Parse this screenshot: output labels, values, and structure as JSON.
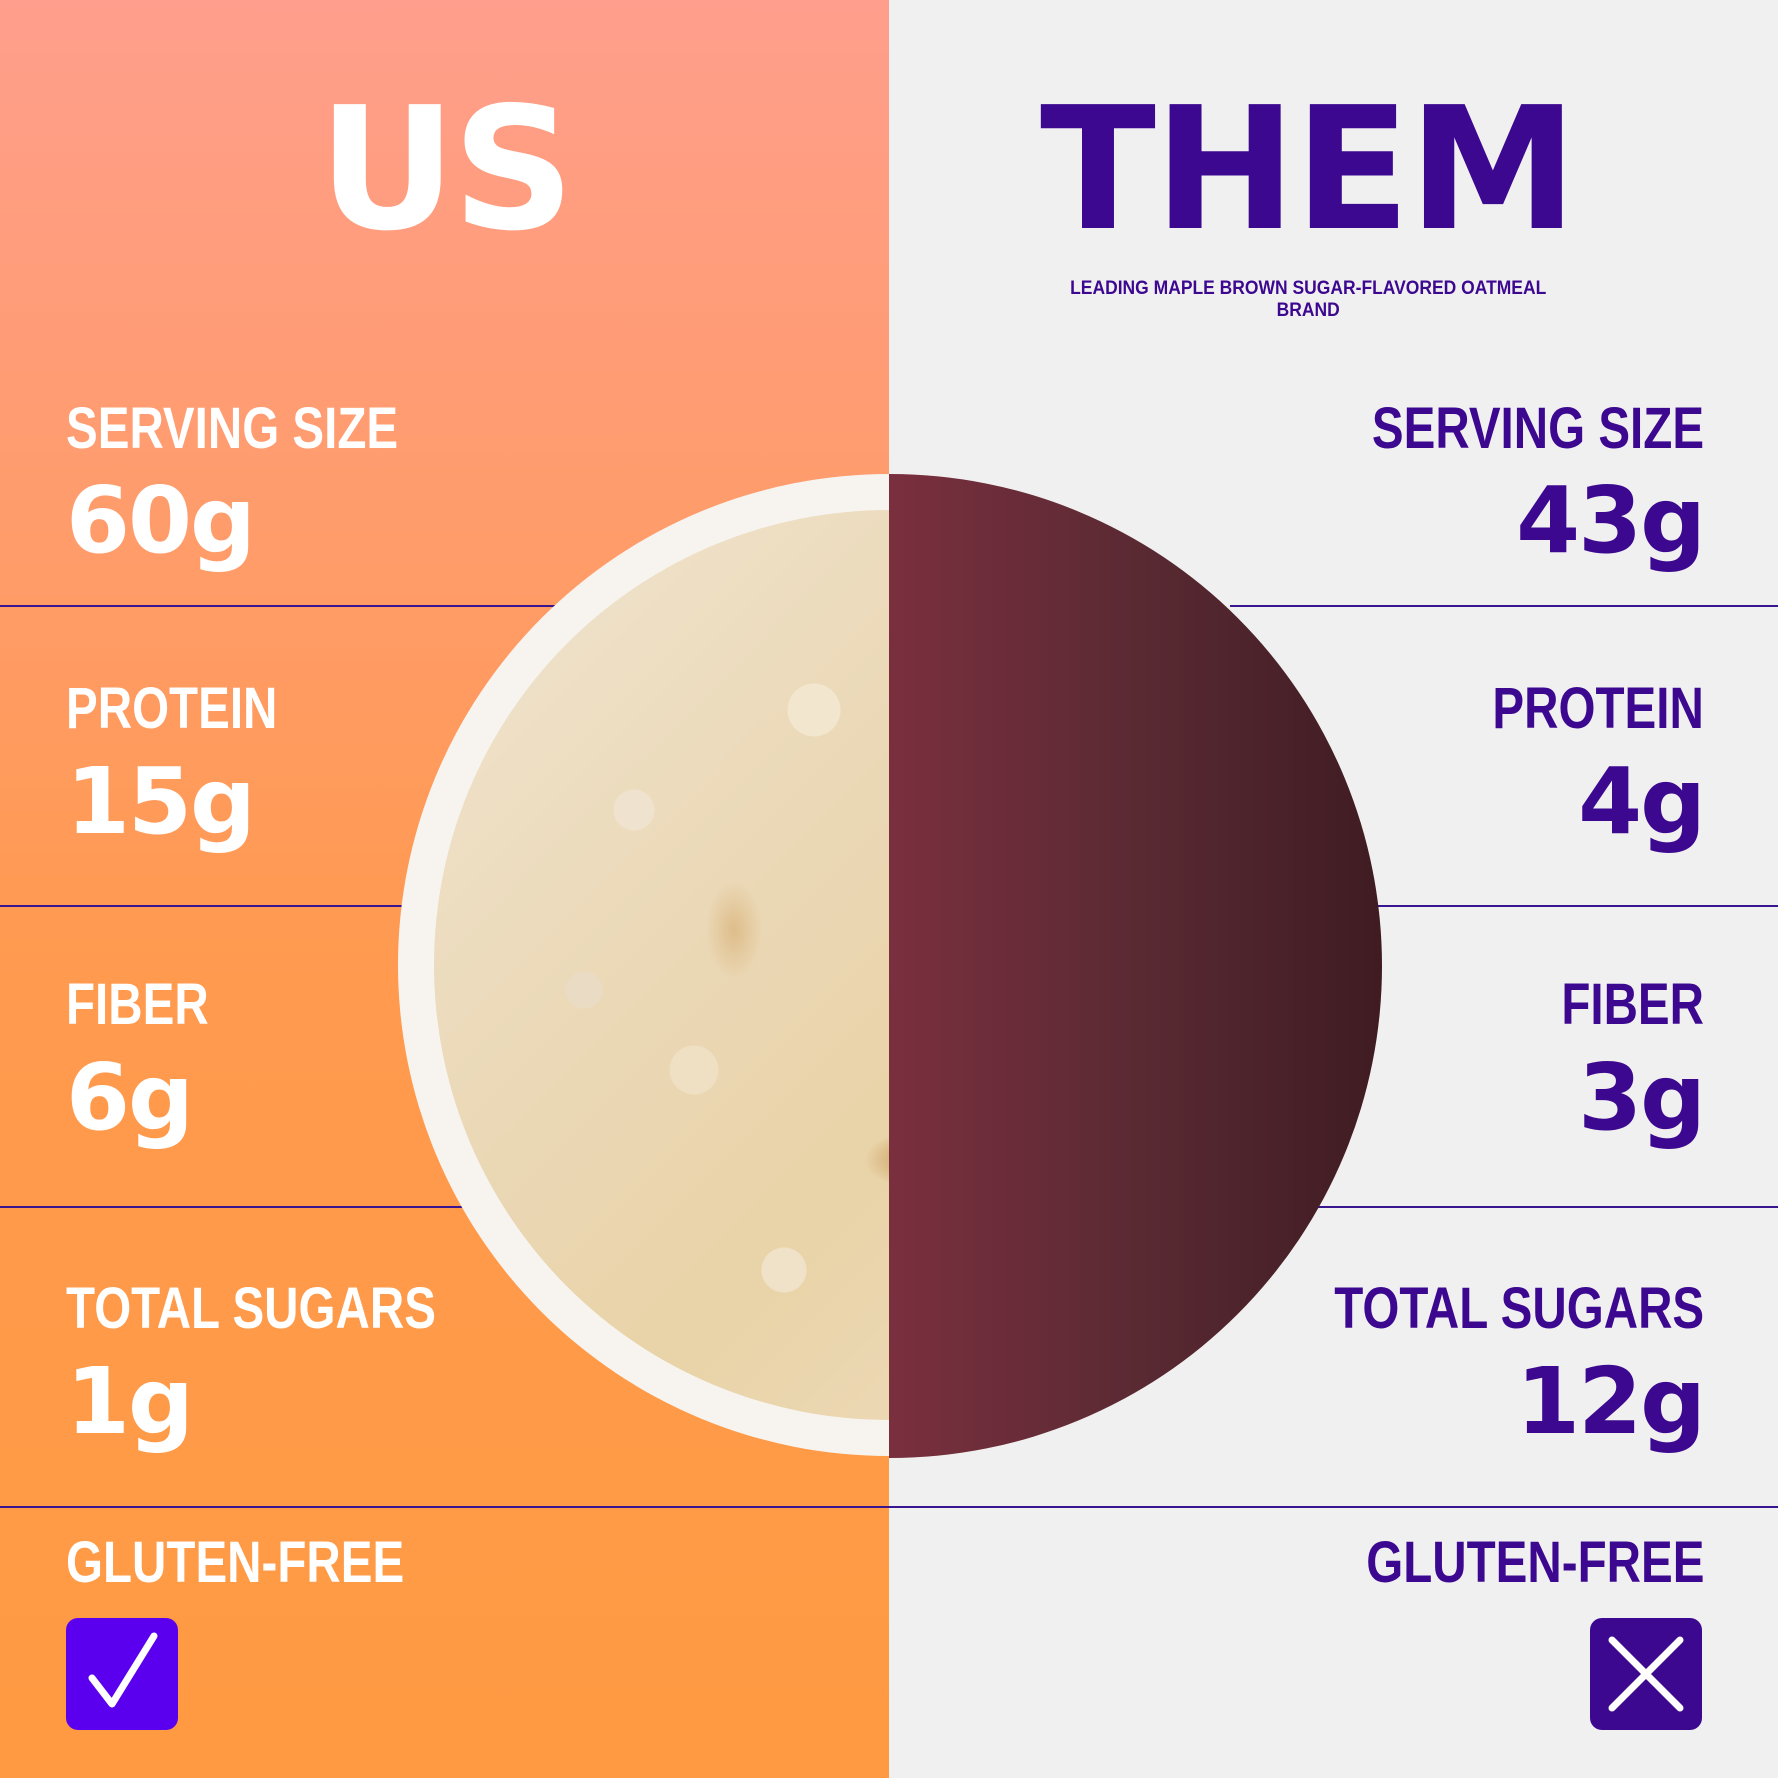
{
  "us": {
    "title": "US",
    "rows": [
      {
        "label": "SERVING SIZE",
        "value": "60g"
      },
      {
        "label": "PROTEIN",
        "value": "15g"
      },
      {
        "label": "FIBER",
        "value": "6g"
      },
      {
        "label": "TOTAL SUGARS",
        "value": "1g"
      }
    ],
    "gluten_free_label": "GLUTEN-FREE",
    "gluten_free": true
  },
  "them": {
    "title": "THEM",
    "subtitle": "LEADING MAPLE BROWN SUGAR-FLAVORED OATMEAL BRAND",
    "rows": [
      {
        "label": "SERVING SIZE",
        "value": "43g"
      },
      {
        "label": "PROTEIN",
        "value": "4g"
      },
      {
        "label": "FIBER",
        "value": "3g"
      },
      {
        "label": "TOTAL SUGARS",
        "value": "12g"
      }
    ],
    "gluten_free_label": "GLUTEN-FREE",
    "gluten_free": false
  },
  "icons": {
    "us_gluten": "check-icon",
    "them_gluten": "x-icon",
    "image": "oatmeal-bowl"
  },
  "colors": {
    "us_background": "#ff9a42",
    "them_background": "#f1f0f1",
    "brand_purple": "#3c0890",
    "check_purple": "#5a00ee",
    "them_bowl": "#6a2a35"
  }
}
